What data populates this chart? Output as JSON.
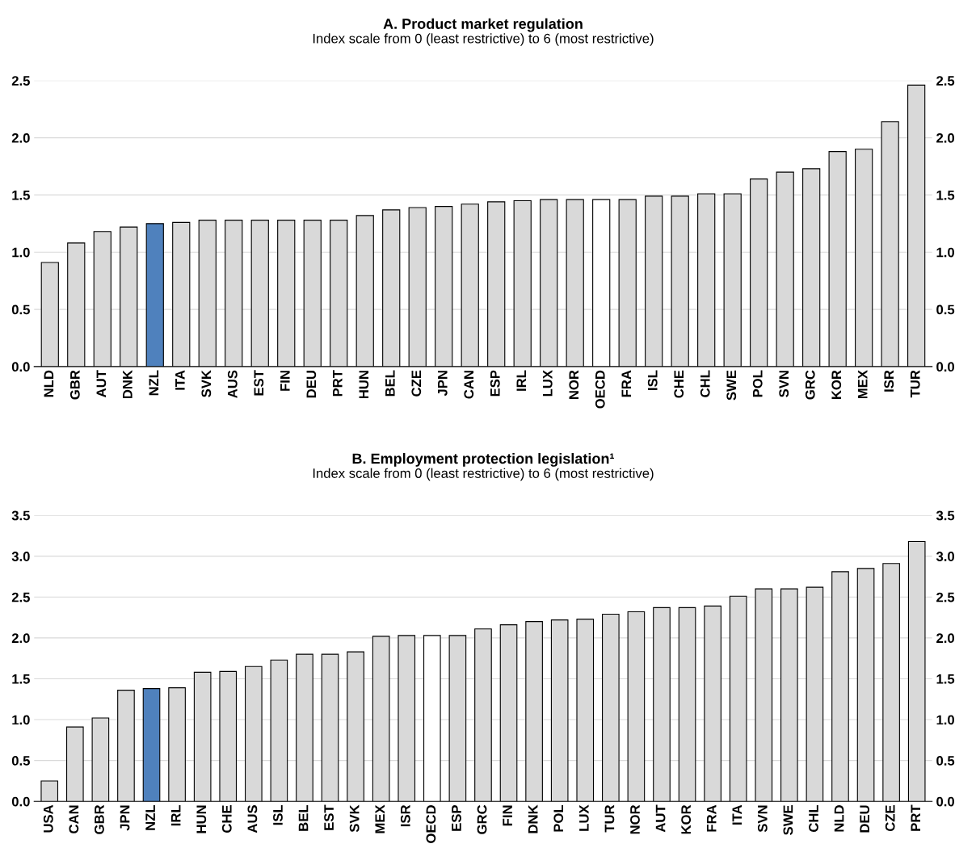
{
  "chart_data": [
    {
      "type": "bar",
      "title": "A. Product market regulation",
      "subtitle": "Index scale from 0 (least restrictive) to 6 (most restrictive)",
      "categories": [
        "NLD",
        "GBR",
        "AUT",
        "DNK",
        "NZL",
        "ITA",
        "SVK",
        "AUS",
        "EST",
        "FIN",
        "DEU",
        "PRT",
        "HUN",
        "BEL",
        "CZE",
        "JPN",
        "CAN",
        "ESP",
        "IRL",
        "LUX",
        "NOR",
        "OECD",
        "FRA",
        "ISL",
        "CHE",
        "CHL",
        "SWE",
        "POL",
        "SVN",
        "GRC",
        "KOR",
        "MEX",
        "ISR",
        "TUR"
      ],
      "values": [
        0.91,
        1.08,
        1.18,
        1.22,
        1.25,
        1.26,
        1.28,
        1.28,
        1.28,
        1.28,
        1.28,
        1.28,
        1.32,
        1.37,
        1.39,
        1.4,
        1.42,
        1.44,
        1.45,
        1.46,
        1.46,
        1.46,
        1.46,
        1.49,
        1.49,
        1.51,
        1.51,
        1.64,
        1.7,
        1.73,
        1.88,
        1.9,
        2.14,
        2.46
      ],
      "colors": [
        "#d9d9d9",
        "#d9d9d9",
        "#d9d9d9",
        "#d9d9d9",
        "#4f81bd",
        "#d9d9d9",
        "#d9d9d9",
        "#d9d9d9",
        "#d9d9d9",
        "#d9d9d9",
        "#d9d9d9",
        "#d9d9d9",
        "#d9d9d9",
        "#d9d9d9",
        "#d9d9d9",
        "#d9d9d9",
        "#d9d9d9",
        "#d9d9d9",
        "#d9d9d9",
        "#d9d9d9",
        "#d9d9d9",
        "#ffffff",
        "#d9d9d9",
        "#d9d9d9",
        "#d9d9d9",
        "#d9d9d9",
        "#d9d9d9",
        "#d9d9d9",
        "#d9d9d9",
        "#d9d9d9",
        "#d9d9d9",
        "#d9d9d9",
        "#d9d9d9",
        "#d9d9d9"
      ],
      "ylim": [
        0,
        2.5
      ],
      "yticks": [
        {
          "value": 0,
          "label": "0.0"
        },
        0.5,
        {
          "value": 1,
          "label": "1.0"
        },
        1.5,
        {
          "value": 2,
          "label": "2.0"
        },
        2.5
      ],
      "y2lim": [
        0,
        2.5
      ],
      "y2ticks": [
        {
          "value": 0,
          "label": "0.0"
        },
        0.5,
        {
          "value": 1,
          "label": "1.0"
        },
        1.5,
        {
          "value": 2,
          "label": "2.0"
        },
        2.5
      ],
      "grid": "y",
      "legend": false
    },
    {
      "type": "bar",
      "title": "B. Employment protection legislation¹",
      "subtitle": "Index scale from 0 (least restrictive) to 6 (most restrictive)",
      "categories": [
        "USA",
        "CAN",
        "GBR",
        "JPN",
        "NZL",
        "IRL",
        "HUN",
        "CHE",
        "AUS",
        "ISL",
        "BEL",
        "EST",
        "SVK",
        "MEX",
        "ISR",
        "OECD",
        "ESP",
        "GRC",
        "FIN",
        "DNK",
        "POL",
        "LUX",
        "TUR",
        "NOR",
        "AUT",
        "KOR",
        "FRA",
        "ITA",
        "SVN",
        "SWE",
        "CHL",
        "NLD",
        "DEU",
        "CZE",
        "PRT"
      ],
      "values": [
        0.25,
        0.91,
        1.02,
        1.36,
        1.38,
        1.39,
        1.58,
        1.59,
        1.65,
        1.73,
        1.8,
        1.8,
        1.83,
        2.02,
        2.03,
        2.03,
        2.03,
        2.11,
        2.16,
        2.2,
        2.22,
        2.23,
        2.29,
        2.32,
        2.37,
        2.37,
        2.39,
        2.51,
        2.6,
        2.6,
        2.62,
        2.81,
        2.85,
        2.91,
        3.18
      ],
      "colors": [
        "#d9d9d9",
        "#d9d9d9",
        "#d9d9d9",
        "#d9d9d9",
        "#4f81bd",
        "#d9d9d9",
        "#d9d9d9",
        "#d9d9d9",
        "#d9d9d9",
        "#d9d9d9",
        "#d9d9d9",
        "#d9d9d9",
        "#d9d9d9",
        "#d9d9d9",
        "#d9d9d9",
        "#ffffff",
        "#d9d9d9",
        "#d9d9d9",
        "#d9d9d9",
        "#d9d9d9",
        "#d9d9d9",
        "#d9d9d9",
        "#d9d9d9",
        "#d9d9d9",
        "#d9d9d9",
        "#d9d9d9",
        "#d9d9d9",
        "#d9d9d9",
        "#d9d9d9",
        "#d9d9d9",
        "#d9d9d9",
        "#d9d9d9",
        "#d9d9d9",
        "#d9d9d9",
        "#d9d9d9"
      ],
      "ylim": [
        0,
        3.5
      ],
      "yticks": [
        {
          "value": 0,
          "label": "0.0"
        },
        0.5,
        {
          "value": 1,
          "label": "1.0"
        },
        1.5,
        {
          "value": 2,
          "label": "2.0"
        },
        2.5,
        {
          "value": 3,
          "label": "3.0"
        },
        3.5
      ],
      "y2lim": [
        0,
        3.5
      ],
      "y2ticks": [
        {
          "value": 0,
          "label": "0.0"
        },
        0.5,
        {
          "value": 1,
          "label": "1.0"
        },
        1.5,
        {
          "value": 2,
          "label": "2.0"
        },
        2.5,
        {
          "value": 3,
          "label": "3.0"
        },
        3.5
      ],
      "grid": "y",
      "legend": false
    }
  ]
}
